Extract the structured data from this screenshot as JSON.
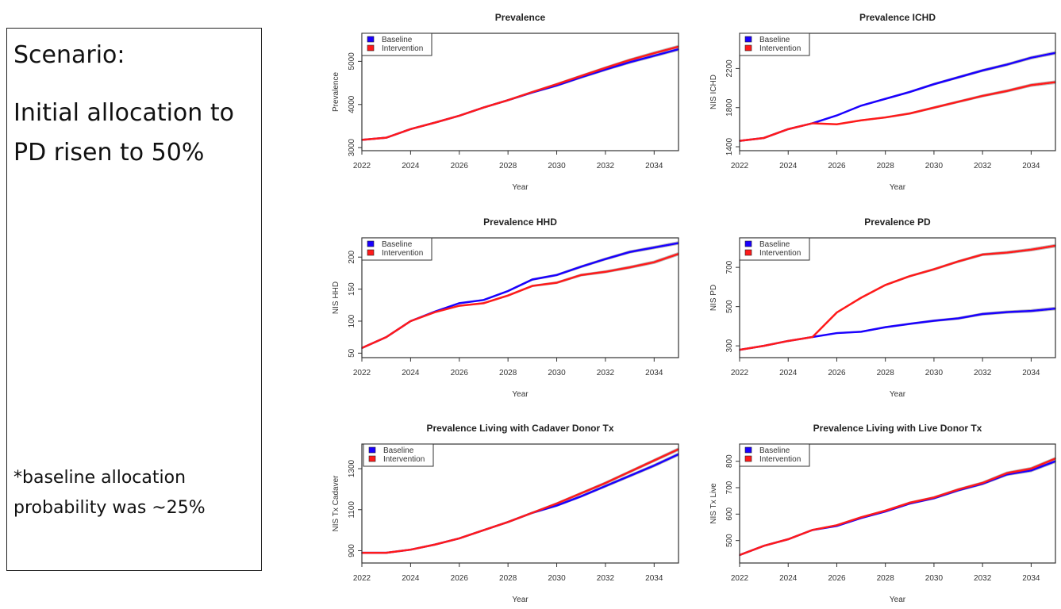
{
  "scenario": {
    "title": "Scenario:",
    "description": "Initial allocation to PD risen to 50%",
    "note": "*baseline allocation probability was ~25%"
  },
  "colors": {
    "baseline": "#1a00ff",
    "intervention": "#ff1a1a",
    "band": "#b8b8b8"
  },
  "chart_data": [
    {
      "type": "line",
      "title": "Prevalence",
      "xlabel": "Year",
      "ylabel": "Prevalence",
      "ylim": [
        2930,
        5650
      ],
      "xlim": [
        2022,
        2035
      ],
      "xticks": [
        "2022",
        "2024",
        "2026",
        "2028",
        "2030",
        "2032",
        "2034"
      ],
      "yticks": [
        "3000",
        "4000",
        "5000"
      ],
      "legend": [
        "Baseline",
        "Intervention"
      ],
      "legend_position": "top-left",
      "x": [
        2022,
        2023,
        2024,
        2025,
        2026,
        2027,
        2028,
        2029,
        2030,
        2031,
        2032,
        2033,
        2034,
        2035
      ],
      "series": [
        {
          "name": "Baseline",
          "values": [
            3180,
            3230,
            3430,
            3580,
            3740,
            3930,
            4100,
            4280,
            4440,
            4630,
            4810,
            4980,
            5130,
            5280
          ]
        },
        {
          "name": "Intervention",
          "values": [
            3180,
            3230,
            3430,
            3580,
            3740,
            3930,
            4100,
            4290,
            4470,
            4660,
            4850,
            5030,
            5190,
            5340
          ]
        }
      ]
    },
    {
      "type": "line",
      "title": "Prevalence ICHD",
      "xlabel": "Year",
      "ylabel": "NIS ICHD",
      "ylim": [
        1360,
        2560
      ],
      "xlim": [
        2022,
        2035
      ],
      "xticks": [
        "2022",
        "2024",
        "2026",
        "2028",
        "2030",
        "2032",
        "2034"
      ],
      "yticks": [
        "1400",
        "1800",
        "2200"
      ],
      "legend": [
        "Baseline",
        "Intervention"
      ],
      "legend_position": "top-left",
      "x": [
        2022,
        2023,
        2024,
        2025,
        2026,
        2027,
        2028,
        2029,
        2030,
        2031,
        2032,
        2033,
        2034,
        2035
      ],
      "series": [
        {
          "name": "Baseline",
          "values": [
            1460,
            1490,
            1580,
            1640,
            1720,
            1820,
            1890,
            1960,
            2040,
            2110,
            2180,
            2240,
            2310,
            2360
          ]
        },
        {
          "name": "Intervention",
          "values": [
            1460,
            1490,
            1580,
            1640,
            1630,
            1670,
            1700,
            1740,
            1800,
            1860,
            1920,
            1970,
            2030,
            2060
          ]
        }
      ]
    },
    {
      "type": "line",
      "title": "Prevalence HHD",
      "xlabel": "Year",
      "ylabel": "NIS HHD",
      "ylim": [
        43,
        230
      ],
      "xlim": [
        2022,
        2035
      ],
      "xticks": [
        "2022",
        "2024",
        "2026",
        "2028",
        "2030",
        "2032",
        "2034"
      ],
      "yticks": [
        "50",
        "100",
        "150",
        "200"
      ],
      "legend": [
        "Baseline",
        "Intervention"
      ],
      "legend_position": "top-left",
      "x": [
        2022,
        2023,
        2024,
        2025,
        2026,
        2027,
        2028,
        2029,
        2030,
        2031,
        2032,
        2033,
        2034,
        2035
      ],
      "series": [
        {
          "name": "Baseline",
          "values": [
            58,
            75,
            100,
            115,
            128,
            133,
            147,
            165,
            172,
            185,
            197,
            208,
            215,
            222
          ]
        },
        {
          "name": "Intervention",
          "values": [
            58,
            75,
            100,
            114,
            124,
            128,
            140,
            155,
            160,
            172,
            177,
            184,
            192,
            205
          ]
        }
      ]
    },
    {
      "type": "line",
      "title": "Prevalence PD",
      "xlabel": "Year",
      "ylabel": "NIS PD",
      "ylim": [
        240,
        850
      ],
      "xlim": [
        2022,
        2035
      ],
      "xticks": [
        "2022",
        "2024",
        "2026",
        "2028",
        "2030",
        "2032",
        "2034"
      ],
      "yticks": [
        "300",
        "500",
        "700"
      ],
      "legend": [
        "Baseline",
        "Intervention"
      ],
      "legend_position": "top-left",
      "x": [
        2022,
        2023,
        2024,
        2025,
        2026,
        2027,
        2028,
        2029,
        2030,
        2031,
        2032,
        2033,
        2034,
        2035
      ],
      "series": [
        {
          "name": "Baseline",
          "values": [
            280,
            300,
            325,
            345,
            365,
            372,
            395,
            412,
            428,
            440,
            462,
            472,
            478,
            490
          ]
        },
        {
          "name": "Intervention",
          "values": [
            280,
            300,
            325,
            345,
            470,
            545,
            610,
            655,
            690,
            730,
            765,
            775,
            790,
            810
          ]
        }
      ]
    },
    {
      "type": "line",
      "title": "Prevalence Living with Cadaver Donor Tx",
      "xlabel": "Year",
      "ylabel": "NIS Tx Cadaver",
      "ylim": [
        840,
        1420
      ],
      "xlim": [
        2022,
        2035
      ],
      "xticks": [
        "2022",
        "2024",
        "2026",
        "2028",
        "2030",
        "2032",
        "2034"
      ],
      "yticks": [
        "900",
        "1100",
        "1300"
      ],
      "legend": [
        "Baseline",
        "Intervention"
      ],
      "legend_position": "top-right",
      "x": [
        2022,
        2023,
        2024,
        2025,
        2026,
        2027,
        2028,
        2029,
        2030,
        2031,
        2032,
        2033,
        2034,
        2035
      ],
      "series": [
        {
          "name": "Baseline",
          "values": [
            890,
            890,
            905,
            930,
            960,
            1000,
            1040,
            1085,
            1120,
            1165,
            1215,
            1265,
            1315,
            1370
          ]
        },
        {
          "name": "Intervention",
          "values": [
            890,
            890,
            905,
            930,
            960,
            1000,
            1040,
            1085,
            1130,
            1180,
            1230,
            1285,
            1340,
            1395
          ]
        }
      ]
    },
    {
      "type": "line",
      "title": "Prevalence Living with Live Donor Tx",
      "xlabel": "Year",
      "ylabel": "NIS Tx Live",
      "ylim": [
        415,
        865
      ],
      "xlim": [
        2022,
        2035
      ],
      "xticks": [
        "2022",
        "2024",
        "2026",
        "2028",
        "2030",
        "2032",
        "2034"
      ],
      "yticks": [
        "500",
        "600",
        "700",
        "800"
      ],
      "legend": [
        "Baseline",
        "Intervention"
      ],
      "legend_position": "top-left",
      "x": [
        2022,
        2023,
        2024,
        2025,
        2026,
        2027,
        2028,
        2029,
        2030,
        2031,
        2032,
        2033,
        2034,
        2035
      ],
      "series": [
        {
          "name": "Baseline",
          "values": [
            445,
            480,
            505,
            540,
            555,
            585,
            610,
            640,
            660,
            690,
            715,
            750,
            765,
            800
          ]
        },
        {
          "name": "Intervention",
          "values": [
            445,
            480,
            505,
            540,
            558,
            588,
            613,
            643,
            663,
            693,
            718,
            755,
            772,
            810
          ]
        }
      ]
    }
  ]
}
